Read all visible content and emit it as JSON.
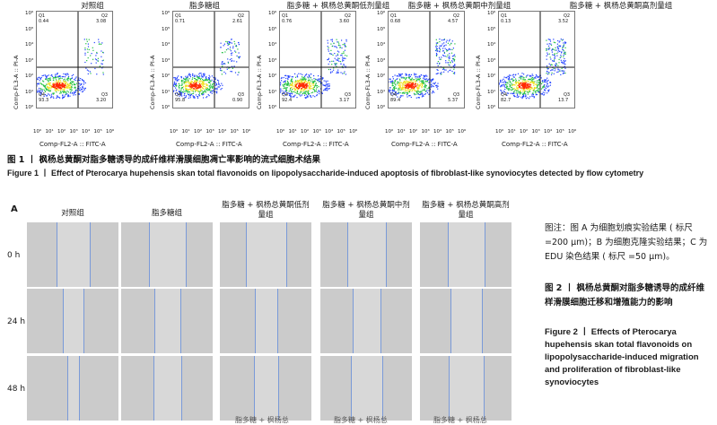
{
  "fig1": {
    "groups": [
      {
        "title": "对照组",
        "q": [
          "0.44",
          "3.08",
          "93.3",
          "3.20"
        ]
      },
      {
        "title": "脂多糖组",
        "q": [
          "0.71",
          "2.61",
          "95.8",
          "0.90"
        ]
      },
      {
        "title": "脂多糖 + 枫杨总黄酮低剂量组",
        "q": [
          "0.76",
          "3.60",
          "92.4",
          "3.17"
        ]
      },
      {
        "title": "脂多糖 + 枫杨总黄酮中剂量组",
        "q": [
          "0.68",
          "4.57",
          "89.4",
          "5.37"
        ]
      },
      {
        "title": "脂多糖 + 枫杨总黄酮高剂量组",
        "q": [
          "0.13",
          "3.52",
          "82.7",
          "13.7"
        ]
      }
    ],
    "quadrant_names": [
      "Q1",
      "Q2",
      "Q4",
      "Q3"
    ],
    "y_axis": "Comp-FL3-A :: PI-A",
    "x_axis": "Comp-FL2-A :: FITC-A",
    "y_ticks": [
      "10⁶",
      "10⁵",
      "10⁴",
      "10³",
      "10²",
      "10¹",
      "10⁰"
    ],
    "x_ticks": [
      "10⁰",
      "10¹",
      "10²",
      "10³",
      "10⁴",
      "10⁵",
      "10⁶"
    ],
    "caption_cn": "图 1  丨  枫杨总黄酮对脂多糖诱导的成纤维样滑膜细胞凋亡率影响的流式细胞术结果",
    "caption_en": "Figure 1  丨  Effect of Pterocarya hupehensis skan total flavonoids on lipopolysaccharide-induced apoptosis of fibroblast-like synoviocytes detected by flow cytometry"
  },
  "fig2": {
    "panel_label": "A",
    "columns": [
      "对照组",
      "脂多糖组",
      "脂多糖 + 枫杨总黄酮低剂量组",
      "脂多糖 + 枫杨总黄酮中剂量组",
      "脂多糖 + 枫杨总黄酮高剂量组"
    ],
    "rows": [
      "0 h",
      "24 h",
      "48 h"
    ],
    "wound_gap": [
      [
        36,
        40,
        44,
        42,
        40
      ],
      [
        22,
        28,
        24,
        30,
        34
      ],
      [
        12,
        30,
        26,
        34,
        38
      ]
    ],
    "note_cn": "图注：图 A 为细胞划痕实验结果 ( 标尺 =200 μm)；B 为细胞克隆实验结果；C 为 EDU 染色结果 ( 标尺 =50 μm)。",
    "caption_cn": "图 2  丨  枫杨总黄酮对脂多糖诱导的成纤维样滑膜细胞迁移和增殖能力的影响",
    "caption_en": "Figure 2  丨  Effects of Pterocarya hupehensis skan total flavonoids on lipopolysaccharide-induced migration and proliferation of fibroblast-like synoviocytes",
    "next_row_partial": [
      "脂多糖 + 枫杨总",
      "脂多糖 + 枫杨总",
      "脂多糖 + 枫杨总"
    ]
  },
  "colors": {
    "dense": "#ff2a00",
    "mid": "#f0e020",
    "low": "#20c040",
    "sparse": "#2040ff"
  }
}
